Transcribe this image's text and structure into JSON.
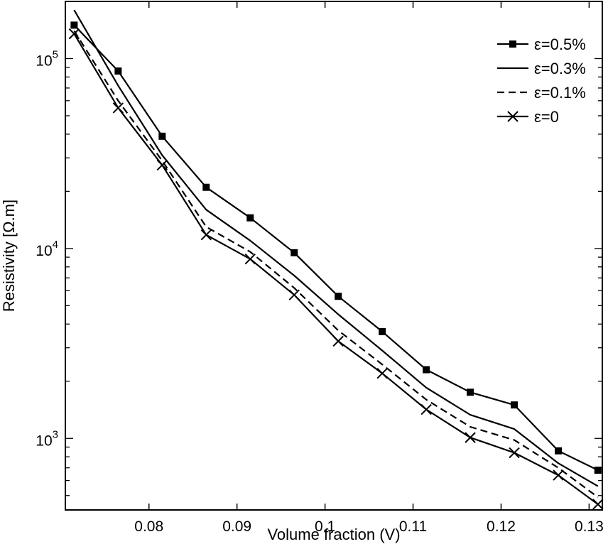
{
  "chart_data": {
    "type": "line",
    "xlabel": "Volume fraction (V)",
    "ylabel": "Resistivity [Ω.m]",
    "y_scale": "log",
    "xlim": [
      0.0705,
      0.1315
    ],
    "ylim": [
      420,
      200000
    ],
    "grid": false,
    "legend_position": "top-right",
    "x_ticks": [
      {
        "value": 0.08,
        "label": "0.08"
      },
      {
        "value": 0.09,
        "label": "0.09"
      },
      {
        "value": 0.1,
        "label": "0.1"
      },
      {
        "value": 0.11,
        "label": "0.11"
      },
      {
        "value": 0.12,
        "label": "0.12"
      },
      {
        "value": 0.13,
        "label": "0.13"
      }
    ],
    "y_ticks": [
      {
        "value": 1000,
        "base": "10",
        "exp": "3"
      },
      {
        "value": 10000,
        "base": "10",
        "exp": "4"
      },
      {
        "value": 100000,
        "base": "10",
        "exp": "5"
      }
    ],
    "series": [
      {
        "name": "ε=0.5%",
        "marker": "square",
        "dash": "solid",
        "x": [
          0.0715,
          0.0765,
          0.0815,
          0.0865,
          0.0915,
          0.0965,
          0.1015,
          0.1065,
          0.1115,
          0.1165,
          0.1215,
          0.1265,
          0.131
        ],
        "y": [
          150000,
          86000,
          39000,
          21000,
          14500,
          9500,
          5600,
          3650,
          2300,
          1750,
          1500,
          860,
          680
        ]
      },
      {
        "name": "ε=0.3%",
        "marker": "none",
        "dash": "solid",
        "x": [
          0.0715,
          0.0765,
          0.0815,
          0.0865,
          0.0915,
          0.0965,
          0.1015,
          0.1065,
          0.1115,
          0.1165,
          0.1215,
          0.1265,
          0.131
        ],
        "y": [
          180000,
          72000,
          31000,
          16000,
          11000,
          7200,
          4500,
          2900,
          1850,
          1330,
          1120,
          740,
          560
        ]
      },
      {
        "name": "ε=0.1%",
        "marker": "none",
        "dash": "dashed",
        "x": [
          0.0715,
          0.0765,
          0.0815,
          0.0865,
          0.0915,
          0.0965,
          0.1015,
          0.1065,
          0.1115,
          0.1165,
          0.1215,
          0.1265,
          0.131
        ],
        "y": [
          140000,
          60000,
          29000,
          13000,
          9600,
          6200,
          3700,
          2450,
          1600,
          1150,
          980,
          700,
          490
        ]
      },
      {
        "name": "ε=0",
        "marker": "x",
        "dash": "solid",
        "x": [
          0.0715,
          0.0765,
          0.0815,
          0.0865,
          0.0915,
          0.0965,
          0.1015,
          0.1065,
          0.1115,
          0.1165,
          0.1215,
          0.1265,
          0.131
        ],
        "y": [
          135000,
          55000,
          27500,
          11800,
          8800,
          5700,
          3250,
          2200,
          1420,
          1010,
          840,
          640,
          450
        ]
      }
    ]
  }
}
